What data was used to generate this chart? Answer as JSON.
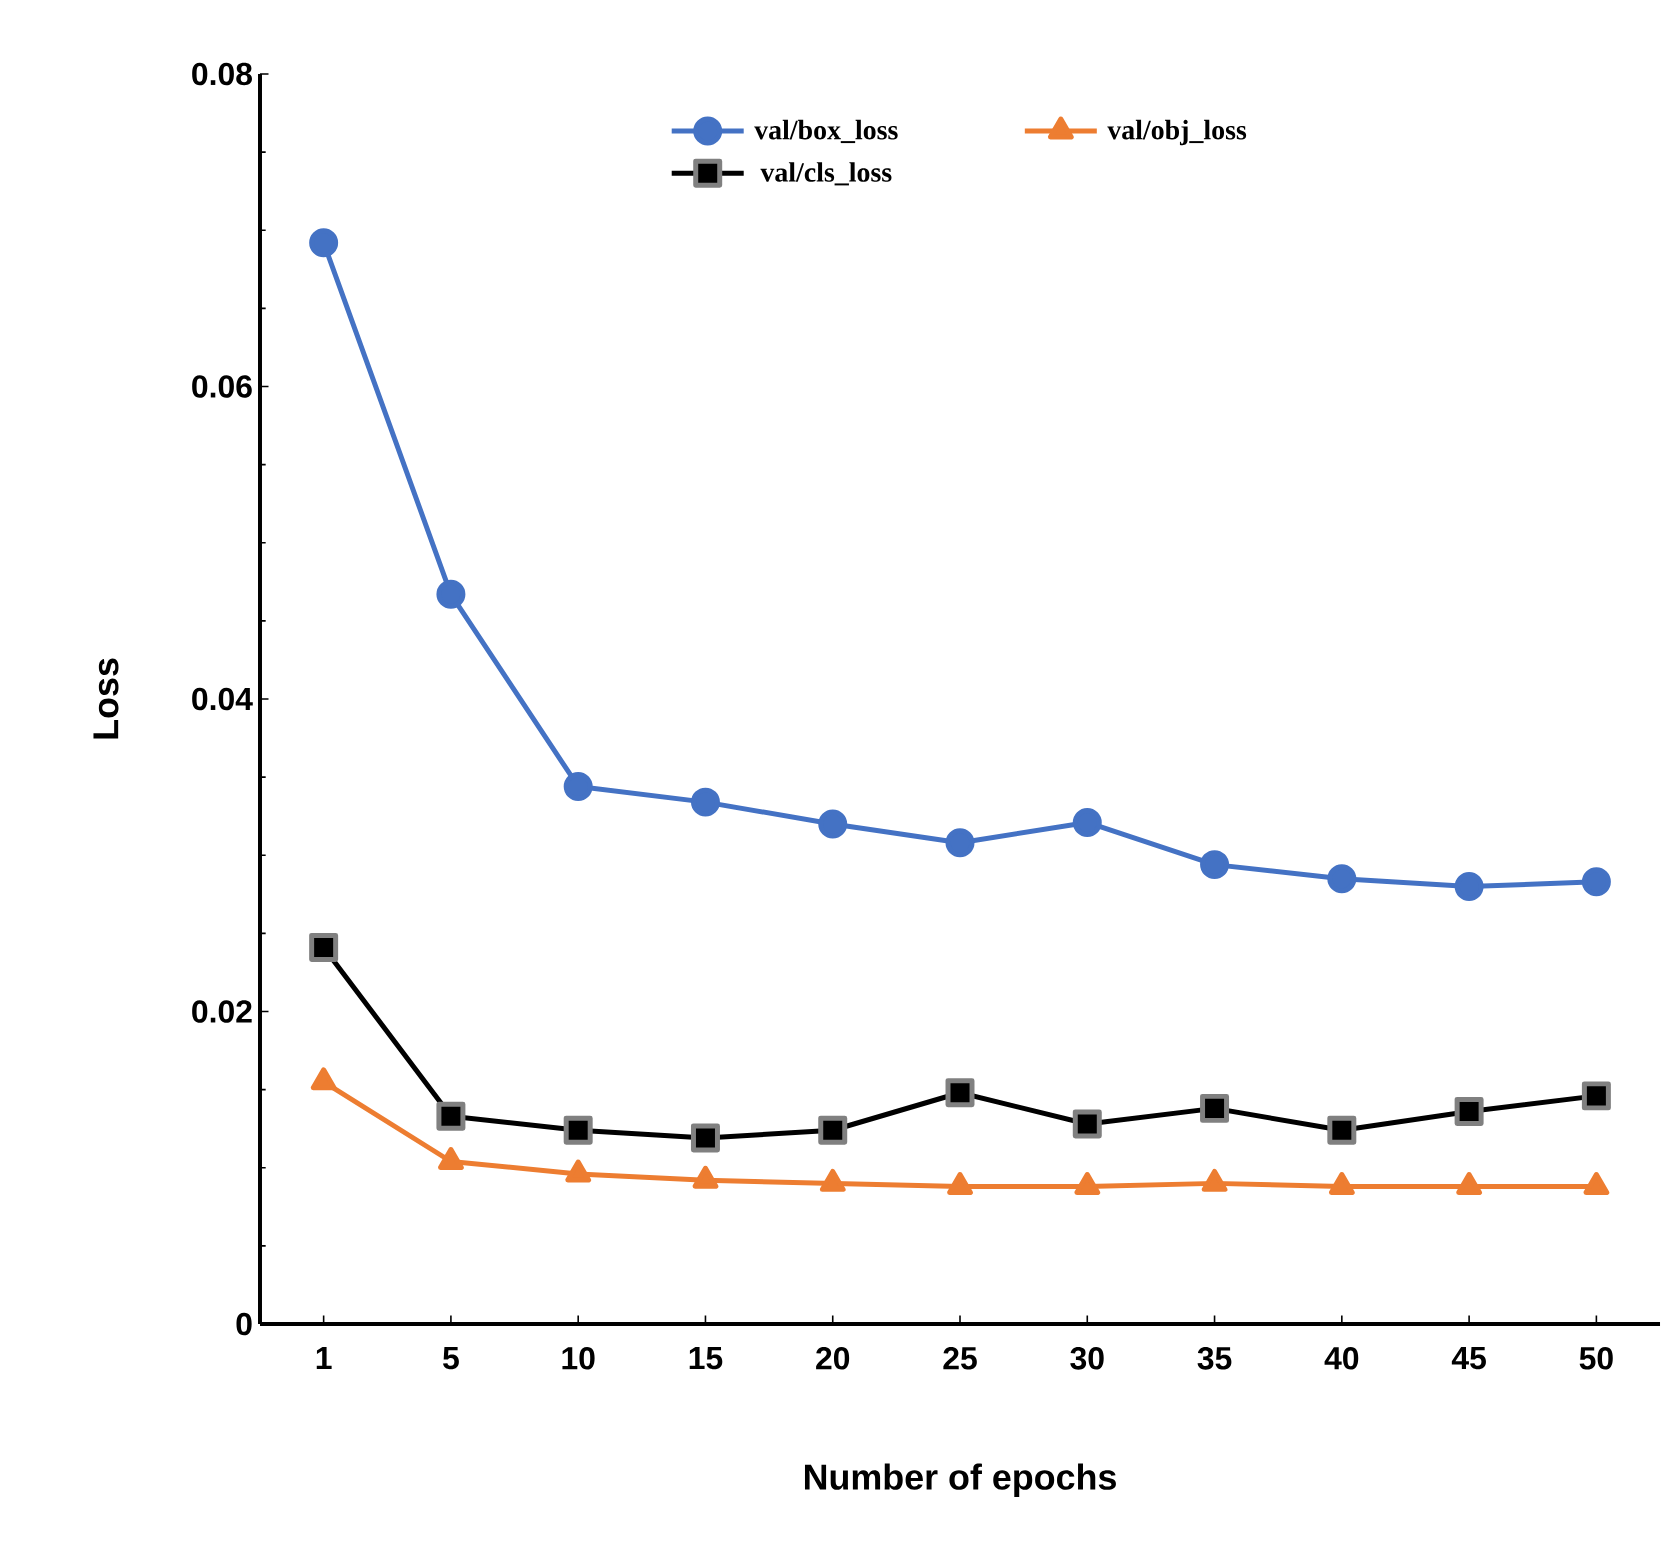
{
  "chart_data": {
    "type": "line",
    "xlabel": "Number of epochs",
    "ylabel": "Loss",
    "categories": [
      "1",
      "5",
      "10",
      "15",
      "20",
      "25",
      "30",
      "35",
      "40",
      "45",
      "50"
    ],
    "series": [
      {
        "name": "val/box_loss",
        "color": "#4472c4",
        "marker": "circle",
        "values": [
          0.0692,
          0.0467,
          0.0344,
          0.0334,
          0.032,
          0.0308,
          0.0321,
          0.0294,
          0.0285,
          0.028,
          0.0283
        ]
      },
      {
        "name": "val/obj_loss",
        "color": "#ed7d31",
        "marker": "triangle",
        "values": [
          0.0155,
          0.0104,
          0.0096,
          0.0092,
          0.009,
          0.0088,
          0.0088,
          0.009,
          0.0088,
          0.0088,
          0.0088
        ]
      },
      {
        "name": "val/cls_loss",
        "color": "#000000",
        "marker": "square",
        "values": [
          0.0241,
          0.0133,
          0.0124,
          0.0119,
          0.0124,
          0.0148,
          0.0128,
          0.0138,
          0.0124,
          0.0136,
          0.0146
        ]
      }
    ],
    "ylim": [
      0,
      0.08
    ],
    "yticks": [
      0,
      0.02,
      0.04,
      0.06,
      0.08
    ],
    "grid": false,
    "legend": "top",
    "line_style": "solid"
  }
}
